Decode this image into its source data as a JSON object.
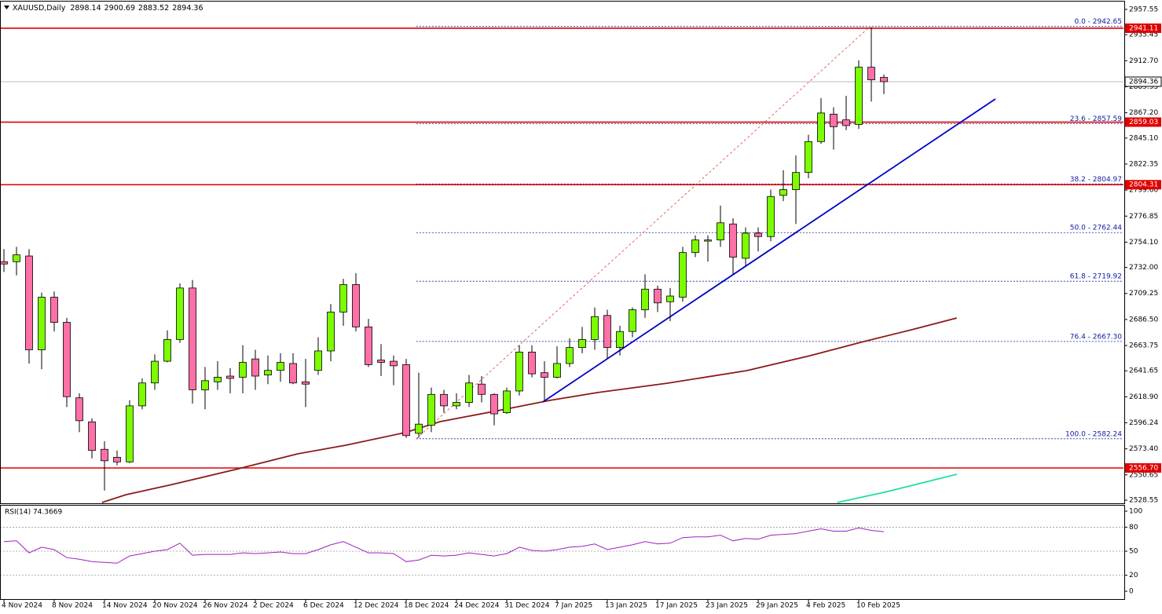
{
  "header": {
    "symbol": "XAUUSD,Daily",
    "ohlc": [
      2898.14,
      2900.69,
      2883.52,
      2894.36
    ]
  },
  "chart_data": [
    {
      "type": "candlestick",
      "categories": [
        "4 Nov 2024",
        null,
        null,
        null,
        "8 Nov 2024",
        null,
        null,
        null,
        "14 Nov 2024",
        null,
        null,
        null,
        "20 Nov 2024",
        null,
        null,
        null,
        "26 Nov 2024",
        null,
        null,
        null,
        "2 Dec 2024",
        null,
        null,
        null,
        "6 Dec 2024",
        null,
        null,
        null,
        "12 Dec 2024",
        null,
        null,
        null,
        "18 Dec 2024",
        null,
        null,
        null,
        "24 Dec 2024",
        null,
        null,
        null,
        "31 Dec 2024",
        null,
        null,
        null,
        "7 Jan 2025",
        null,
        null,
        null,
        "13 Jan 2025",
        null,
        null,
        null,
        "17 Jan 2025",
        null,
        null,
        null,
        "23 Jan 2025",
        null,
        null,
        null,
        "29 Jan 2025",
        null,
        null,
        null,
        "4 Feb 2025",
        null,
        null,
        null,
        "10 Feb 2025",
        null,
        null
      ],
      "open": [
        2737,
        2737,
        2742,
        2660,
        2706,
        2684,
        2618,
        2597,
        2573,
        2566,
        2562,
        2611,
        2631,
        2650,
        2669,
        2714,
        2625,
        2632,
        2637,
        2636,
        2652,
        2638,
        2642,
        2648,
        2632,
        2642,
        2659,
        2693,
        2717,
        2680,
        2651,
        2650,
        2647,
        2587,
        2594,
        2621,
        2611,
        2614,
        2630,
        2621,
        2605,
        2624,
        2658,
        2640,
        2636,
        2648,
        2662,
        2669,
        2690,
        2662,
        2676,
        2695,
        2713,
        2702,
        2706,
        2745,
        2755,
        2756,
        2770,
        2740,
        2762,
        2759,
        2795,
        2800,
        2815,
        2842,
        2866,
        2861,
        2857,
        2907,
        2898.14
      ],
      "high": [
        2748,
        2750,
        2748,
        2710,
        2711,
        2688,
        2622,
        2600,
        2580,
        2572,
        2616,
        2635,
        2656,
        2677,
        2718,
        2721,
        2645,
        2650,
        2644,
        2664,
        2660,
        2655,
        2657,
        2657,
        2652,
        2671,
        2700,
        2722,
        2727,
        2687,
        2665,
        2655,
        2652,
        2640,
        2627,
        2625,
        2622,
        2638,
        2637,
        2622,
        2627,
        2664,
        2664,
        2650,
        2663,
        2670,
        2680,
        2697,
        2695,
        2681,
        2697,
        2726,
        2716,
        2714,
        2750,
        2760,
        2760,
        2786,
        2775,
        2767,
        2767,
        2800,
        2817,
        2830,
        2848,
        2880,
        2872,
        2882,
        2913,
        2942,
        2900.69
      ],
      "low": [
        2728,
        2725,
        2648,
        2643,
        2676,
        2610,
        2588,
        2565,
        2537,
        2559,
        2561,
        2608,
        2625,
        2649,
        2666,
        2613,
        2608,
        2625,
        2622,
        2622,
        2625,
        2630,
        2632,
        2630,
        2610,
        2638,
        2650,
        2681,
        2676,
        2645,
        2637,
        2629,
        2583,
        2583,
        2588,
        2605,
        2608,
        2610,
        2614,
        2594,
        2604,
        2620,
        2636,
        2615,
        2635,
        2645,
        2657,
        2660,
        2652,
        2655,
        2671,
        2688,
        2693,
        2685,
        2702,
        2741,
        2737,
        2750,
        2726,
        2733,
        2746,
        2755,
        2790,
        2770,
        2810,
        2840,
        2835,
        2852,
        2853,
        2877,
        2883.52
      ],
      "close": [
        2735,
        2743,
        2660,
        2706,
        2684,
        2619,
        2598,
        2572,
        2563,
        2562,
        2611,
        2631,
        2650,
        2669,
        2714,
        2625,
        2633,
        2636,
        2635,
        2649,
        2637,
        2642,
        2649,
        2631,
        2630,
        2659,
        2693,
        2717,
        2680,
        2647,
        2649,
        2646,
        2585,
        2595,
        2621,
        2611,
        2614,
        2631,
        2621,
        2604,
        2624,
        2658,
        2639,
        2636,
        2648,
        2662,
        2669,
        2689,
        2662,
        2676,
        2695,
        2713,
        2701,
        2707,
        2745,
        2756,
        2756,
        2771,
        2741,
        2762,
        2759,
        2794,
        2800,
        2815,
        2842,
        2867,
        2855,
        2856,
        2907,
        2896,
        2894.36
      ],
      "up_color": "#7cfc00",
      "down_color": "#ff6fa8",
      "xlim": [
        -0.3125,
        89.0625
      ],
      "ylim": [
        2526.5,
        2964.4
      ],
      "yticks": [
        2957.55,
        2935.45,
        {
          "value": 2912.7,
          "label": "2912.70"
        },
        2889.95,
        {
          "value": 2867.2,
          "label": "2867.20"
        },
        {
          "value": 2845.1,
          "label": "2845.10"
        },
        2822.35,
        {
          "value": 2799.6,
          "label": "2799.60"
        },
        2776.85,
        {
          "value": 2754.1,
          "label": "2754.10"
        },
        {
          "value": 2732,
          "label": "2732.00"
        },
        2709.25,
        {
          "value": 2686.5,
          "label": "2686.50"
        },
        2663.75,
        2641.65,
        {
          "value": 2618.9,
          "label": "2618.90"
        },
        2596.24,
        {
          "value": 2573.4,
          "label": "2573.40"
        },
        2550.65,
        2528.55
      ],
      "levels": [
        2941.11,
        2859.03,
        2804.31,
        {
          "value": 2556.7,
          "label": "2556.70"
        }
      ],
      "level_color": "#e00000",
      "last_price": 2894.36,
      "fib": [
        {
          "value": 2942.65,
          "label": "0.0 - 2942.65"
        },
        {
          "value": 2857.59,
          "label": "23.6 - 2857.59"
        },
        {
          "value": 2804.97,
          "label": "38.2 - 2804.97"
        },
        {
          "value": 2762.44,
          "label": "50.0 - 2762.44"
        },
        {
          "value": 2719.92,
          "label": "61.8 - 2719.92"
        },
        {
          "value": 2667.3,
          "label": "76.4 - 2667.30"
        },
        {
          "value": 2582.24,
          "label": "100.0 - 2582.24"
        }
      ],
      "fib_start": 32.8,
      "lines": [
        {
          "color": "#8b1a1a",
          "x": [
            7.8,
            9.7,
            13.4,
            18.4,
            23.4,
            27.2,
            31.9,
            34.7,
            40.3,
            43.4,
            47.2,
            52.8,
            59.1,
            64.1,
            68.4,
            72.2,
            75.8
          ],
          "values": [
            2526.5,
            2533.3,
            2542.3,
            2555.3,
            2569.1,
            2576.6,
            2587.6,
            2597.2,
            2608.9,
            2615.7,
            2622.6,
            2630.8,
            2641.8,
            2654.8,
            2667.2,
            2677.5,
            2687.8
          ]
        },
        {
          "color": "#20e0a0",
          "x": [
            66.3,
            70.3,
            75.8
          ],
          "values": [
            2526.5,
            2536.1,
            2551.2
          ]
        },
        {
          "color": "#0000c8",
          "x": [
            42.875,
            78.875
          ],
          "values": [
            2614.4,
            2879.3
          ]
        },
        {
          "color": "#e04040",
          "dashed": true,
          "x": [
            32.8,
            68.9
          ],
          "values": [
            2582.24,
            2942.65
          ]
        }
      ]
    },
    {
      "type": "line",
      "title": "RSI(14) 74.3669",
      "color": "#a020c0",
      "values": [
        62,
        63,
        48,
        55,
        52,
        42,
        40,
        37,
        36,
        35,
        44,
        47,
        50,
        52,
        60,
        45,
        46,
        46,
        46,
        48,
        47,
        48,
        49,
        47,
        47,
        52,
        58,
        62,
        55,
        48,
        48,
        47,
        37,
        39,
        45,
        44,
        45,
        48,
        46,
        44,
        47,
        55,
        51,
        50,
        52,
        55,
        56,
        59,
        52,
        55,
        58,
        62,
        59,
        60,
        67,
        68,
        68,
        70,
        63,
        66,
        65,
        70,
        71,
        72,
        75,
        78,
        75,
        75,
        79,
        76,
        74.3669
      ],
      "ylim": [
        -8.8,
        105.9
      ],
      "yticks": [
        100,
        80,
        50,
        20,
        0
      ],
      "levels": [
        80,
        50,
        20
      ]
    }
  ]
}
